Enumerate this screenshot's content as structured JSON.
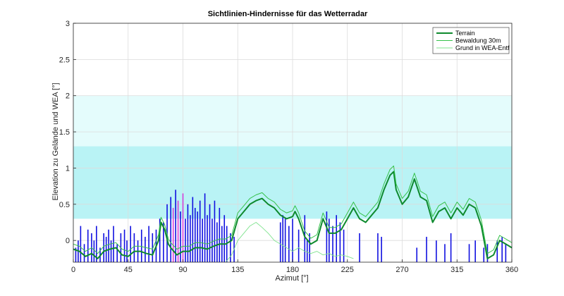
{
  "chart_data": {
    "type": "line",
    "title": "Sichtlinien-Hindernisse für das Wetterradar",
    "xlabel": "Azimut [°]",
    "ylabel": "Elevation zu Gelände und WEA [°]",
    "xlim": [
      0,
      360
    ],
    "ylim": [
      -0.3,
      3
    ],
    "xticks": [
      "0",
      "45",
      "90",
      "135",
      "180",
      "225",
      "270",
      "315",
      "360"
    ],
    "yticks": [
      "0",
      "0.5",
      "1",
      "1.5",
      "2",
      "2.5",
      "3"
    ],
    "grid": true,
    "legend_position": "top-right",
    "bands": [
      {
        "y0": 0.3,
        "y1": 2.0,
        "color": "#e4fcfc"
      },
      {
        "y0": 0.3,
        "y1": 1.3,
        "color": "#b9f3f5"
      }
    ],
    "colors": {
      "terrain": "#0e8a2e",
      "forest": "#35c24a",
      "ground": "#7fe38e",
      "wea": "#1010e0",
      "wea_highlight": "#d63cd6",
      "band_light": "#e4fcfc",
      "band_dark": "#b9f3f5"
    },
    "series": [
      {
        "name": "Terrain",
        "x": [
          0,
          5,
          10,
          15,
          20,
          25,
          30,
          35,
          40,
          45,
          50,
          55,
          60,
          65,
          70,
          72,
          75,
          78,
          80,
          85,
          90,
          95,
          100,
          105,
          110,
          115,
          120,
          125,
          130,
          135,
          140,
          145,
          150,
          155,
          160,
          165,
          170,
          175,
          180,
          182,
          185,
          190,
          195,
          200,
          205,
          210,
          215,
          220,
          225,
          230,
          235,
          240,
          245,
          250,
          255,
          258,
          260,
          263,
          265,
          270,
          275,
          280,
          285,
          290,
          295,
          300,
          305,
          310,
          315,
          320,
          325,
          330,
          335,
          340,
          345,
          350,
          355,
          360
        ],
        "y": [
          -0.12,
          -0.15,
          -0.22,
          -0.18,
          -0.25,
          -0.15,
          -0.12,
          -0.1,
          -0.2,
          -0.22,
          -0.15,
          -0.15,
          -0.18,
          -0.2,
          0.0,
          0.25,
          0.15,
          -0.05,
          -0.1,
          -0.2,
          -0.15,
          -0.15,
          -0.1,
          -0.1,
          -0.12,
          -0.08,
          -0.05,
          -0.05,
          0.0,
          0.3,
          0.4,
          0.5,
          0.55,
          0.58,
          0.5,
          0.45,
          0.35,
          0.3,
          0.33,
          0.4,
          0.3,
          0.05,
          -0.05,
          0.0,
          0.3,
          0.1,
          0.1,
          0.15,
          0.3,
          0.45,
          0.3,
          0.25,
          0.35,
          0.45,
          0.7,
          0.82,
          0.9,
          0.95,
          0.7,
          0.5,
          0.6,
          0.85,
          0.6,
          0.55,
          0.25,
          0.4,
          0.45,
          0.3,
          0.45,
          0.35,
          0.5,
          0.45,
          0.2,
          -0.25,
          -0.2,
          0.0,
          -0.05,
          -0.1
        ]
      },
      {
        "name": "Bewaldung 30m",
        "x": [
          0,
          5,
          10,
          15,
          20,
          25,
          30,
          35,
          40,
          45,
          50,
          55,
          60,
          65,
          70,
          72,
          75,
          78,
          80,
          85,
          90,
          95,
          100,
          105,
          110,
          115,
          120,
          125,
          130,
          135,
          140,
          145,
          150,
          155,
          160,
          165,
          170,
          175,
          180,
          182,
          185,
          190,
          195,
          200,
          205,
          210,
          215,
          220,
          225,
          230,
          235,
          240,
          245,
          250,
          255,
          258,
          260,
          263,
          265,
          270,
          275,
          280,
          285,
          290,
          295,
          300,
          305,
          310,
          315,
          320,
          325,
          330,
          335,
          340,
          345,
          350,
          355,
          360
        ],
        "y": [
          -0.05,
          -0.08,
          -0.15,
          -0.1,
          -0.18,
          -0.08,
          -0.05,
          -0.03,
          -0.12,
          -0.15,
          -0.08,
          -0.08,
          -0.1,
          -0.12,
          0.08,
          0.32,
          0.22,
          0.02,
          -0.03,
          -0.12,
          -0.08,
          -0.08,
          -0.03,
          -0.03,
          -0.05,
          -0.01,
          0.02,
          0.02,
          0.07,
          0.38,
          0.48,
          0.58,
          0.63,
          0.66,
          0.58,
          0.53,
          0.43,
          0.38,
          0.41,
          0.48,
          0.38,
          0.13,
          0.03,
          0.08,
          0.38,
          0.18,
          0.18,
          0.23,
          0.38,
          0.53,
          0.38,
          0.33,
          0.43,
          0.53,
          0.78,
          0.9,
          0.98,
          1.03,
          0.78,
          0.58,
          0.68,
          0.93,
          0.68,
          0.63,
          0.33,
          0.48,
          0.53,
          0.38,
          0.53,
          0.43,
          0.58,
          0.53,
          0.28,
          -0.18,
          -0.13,
          0.07,
          0.02,
          -0.03
        ]
      },
      {
        "name": "Grund in WEA-Entf",
        "x": [
          125,
          130,
          135,
          140,
          145,
          150,
          155,
          160,
          165,
          170,
          175,
          180,
          185,
          190,
          195,
          200,
          205,
          210,
          215,
          220,
          225,
          230
        ],
        "y": [
          -0.3,
          -0.2,
          0.0,
          0.1,
          0.2,
          0.25,
          0.18,
          0.1,
          0.0,
          -0.05,
          -0.1,
          -0.15,
          -0.1,
          -0.15,
          -0.18,
          -0.15,
          -0.2,
          -0.18,
          -0.22,
          -0.2,
          -0.22,
          -0.25
        ]
      }
    ],
    "wea_markers": {
      "name": "WEA",
      "azimuths": [
        2,
        4,
        6,
        9,
        12,
        15,
        17,
        19,
        22,
        25,
        27,
        29,
        31,
        33,
        36,
        39,
        42,
        44,
        47,
        50,
        53,
        56,
        59,
        62,
        65,
        68,
        71,
        74,
        77,
        80,
        82,
        84,
        86,
        88,
        90,
        92,
        94,
        96,
        98,
        100,
        102,
        104,
        106,
        108,
        110,
        112,
        114,
        116,
        118,
        120,
        122,
        124,
        126,
        129,
        132,
        170,
        172,
        174,
        177,
        180,
        185,
        190,
        192,
        194,
        208,
        210,
        213,
        216,
        219,
        222,
        235,
        250,
        253,
        282,
        290,
        298,
        305,
        310,
        325,
        330,
        337,
        340,
        348,
        352,
        355
      ],
      "tops": [
        -0.1,
        0.0,
        0.2,
        -0.05,
        0.15,
        0.1,
        0.0,
        0.2,
        -0.1,
        0.1,
        0.05,
        0.15,
        0.0,
        0.2,
        -0.05,
        0.1,
        0.15,
        0.0,
        0.2,
        0.1,
        0.0,
        0.15,
        0.05,
        0.2,
        0.1,
        0.15,
        0.3,
        0.25,
        0.5,
        0.6,
        0.45,
        0.7,
        0.55,
        0.4,
        0.65,
        0.3,
        0.5,
        0.35,
        0.6,
        0.45,
        0.4,
        0.55,
        0.3,
        0.65,
        0.35,
        0.5,
        0.3,
        0.55,
        0.25,
        0.45,
        0.2,
        0.35,
        0.2,
        0.1,
        0.05,
        0.25,
        0.35,
        0.3,
        0.2,
        0.3,
        0.15,
        0.35,
        0.0,
        0.1,
        0.4,
        0.3,
        0.2,
        0.35,
        0.25,
        0.15,
        0.1,
        0.1,
        0.05,
        -0.1,
        0.05,
        0.0,
        -0.05,
        0.1,
        -0.05,
        0.0,
        -0.1,
        -0.05,
        0.0,
        0.05,
        -0.05
      ],
      "highlight_range": [
        79,
        90
      ]
    }
  }
}
